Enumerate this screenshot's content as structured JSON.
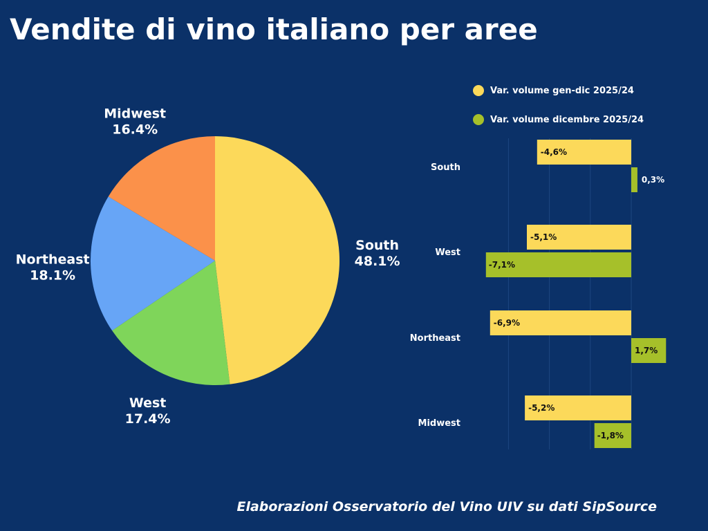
{
  "title": "Vendite di vino italiano per aree",
  "source": "Elaborazioni Osservatorio del Vino UIV su dati SipSource",
  "colors": {
    "background": "#0b3168",
    "south": "#fcd95a",
    "west": "#7fd55a",
    "northeast": "#67a5f6",
    "midwest": "#fb914a",
    "series_year": "#fcd95a",
    "series_december": "#a6c02a"
  },
  "chart_data": [
    {
      "type": "pie",
      "labels": [
        "South",
        "West",
        "Northeast",
        "Midwest"
      ],
      "values": [
        48.1,
        17.4,
        18.1,
        16.4
      ],
      "value_labels": [
        "48.1%",
        "17.4%",
        "18.1%",
        "16.4%"
      ]
    },
    {
      "type": "bar",
      "orientation": "horizontal",
      "categories": [
        "South",
        "West",
        "Northeast",
        "Midwest"
      ],
      "legend": {
        "placement": "top-right"
      },
      "series": [
        {
          "name": "Var. volume gen-dic 2025/24",
          "values": [
            -4.6,
            -5.1,
            -6.9,
            -5.2
          ],
          "value_labels": [
            "-4,6%",
            "-5,1%",
            "-6,9%",
            "-5,2%"
          ]
        },
        {
          "name": "Var. volume dicembre 2025/24",
          "values": [
            0.3,
            -7.1,
            1.7,
            -1.8
          ],
          "value_labels": [
            "0,3%",
            "-7,1%",
            "1,7%",
            "-1,8%"
          ]
        }
      ],
      "xlim": [
        -7.1,
        1.7
      ],
      "grid": true
    }
  ]
}
